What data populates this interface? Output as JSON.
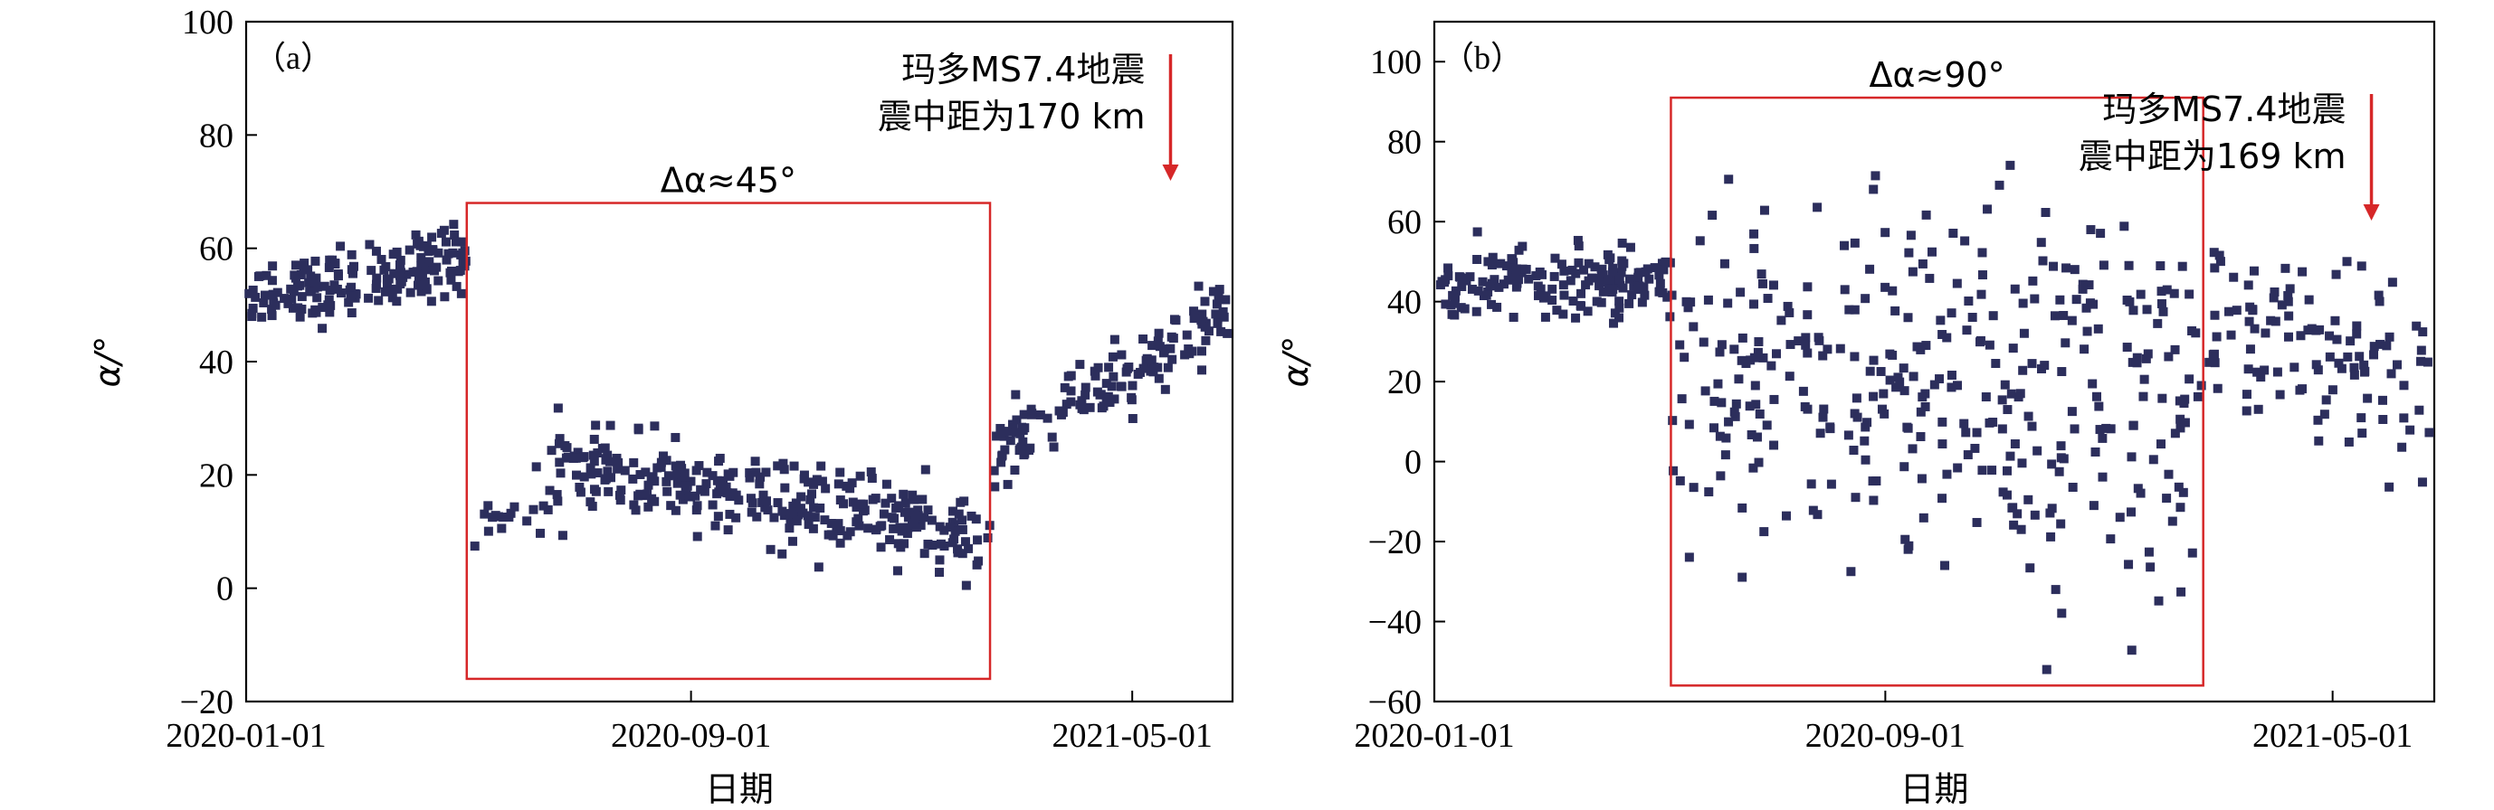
{
  "chart_data": [
    {
      "type": "scatter",
      "panel_label": "（a）",
      "xlabel": "日期",
      "ylabel": "α/°",
      "x_ticks": [
        "2020-01-01",
        "2020-09-01",
        "2021-05-01"
      ],
      "x_range": [
        "2020-01-01",
        "2021-06-25"
      ],
      "ylim": [
        -20,
        100
      ],
      "y_ticks": [
        -20,
        0,
        20,
        40,
        60,
        80,
        100
      ],
      "box": {
        "x_start": "2020-05-01",
        "x_end": "2021-02-12",
        "y_low": -16,
        "y_high": 68,
        "color": "#d62728"
      },
      "box_label": "Δα≈45°",
      "event_label": [
        "玛多MS7.4地震",
        "震中距为170 km"
      ],
      "event_date": "2021-05-22",
      "arrow_color": "#d62728",
      "series": [
        {
          "x_range": [
            "2020-01-01",
            "2020-05-01"
          ],
          "points": 180,
          "y_start": 50,
          "y_end": 59,
          "spread": 5
        },
        {
          "x_range": [
            "2020-05-05",
            "2020-06-20"
          ],
          "points": 22,
          "y_start": 12,
          "y_end": 16,
          "spread": 5
        },
        {
          "x_range": [
            "2020-06-20",
            "2021-02-12"
          ],
          "points": 300,
          "y_start": 22,
          "y_end": 9,
          "spread": 6
        },
        {
          "x_range": [
            "2021-02-12",
            "2021-06-25"
          ],
          "points": 150,
          "y_start": 22,
          "y_end": 50,
          "spread": 5
        }
      ]
    },
    {
      "type": "scatter",
      "panel_label": "（b）",
      "xlabel": "日期",
      "ylabel": "α/°",
      "x_ticks": [
        "2020-01-01",
        "2020-09-01",
        "2021-05-01"
      ],
      "x_range": [
        "2020-01-01",
        "2021-06-25"
      ],
      "ylim": [
        -60,
        110
      ],
      "y_ticks": [
        -60,
        -40,
        -20,
        0,
        20,
        40,
        60,
        80,
        100
      ],
      "box": {
        "x_start": "2020-05-08",
        "x_end": "2021-02-20",
        "y_low": -56,
        "y_high": 91,
        "color": "#d62728"
      },
      "box_label": "Δα≈90°",
      "event_label": [
        "玛多MS7.4地震",
        "震中距为169 km"
      ],
      "event_date": "2021-05-22",
      "arrow_color": "#d62728",
      "series": [
        {
          "x_range": [
            "2020-01-01",
            "2020-05-08"
          ],
          "points": 170,
          "y_start": 44,
          "y_end": 45,
          "spread": 7
        },
        {
          "x_range": [
            "2020-05-08",
            "2021-02-20"
          ],
          "points": 360,
          "y_start": 20,
          "y_end": 15,
          "spread": 40
        },
        {
          "x_range": [
            "2021-02-20",
            "2021-06-25"
          ],
          "points": 110,
          "y_start": 38,
          "y_end": 18,
          "spread": 18
        }
      ]
    }
  ]
}
